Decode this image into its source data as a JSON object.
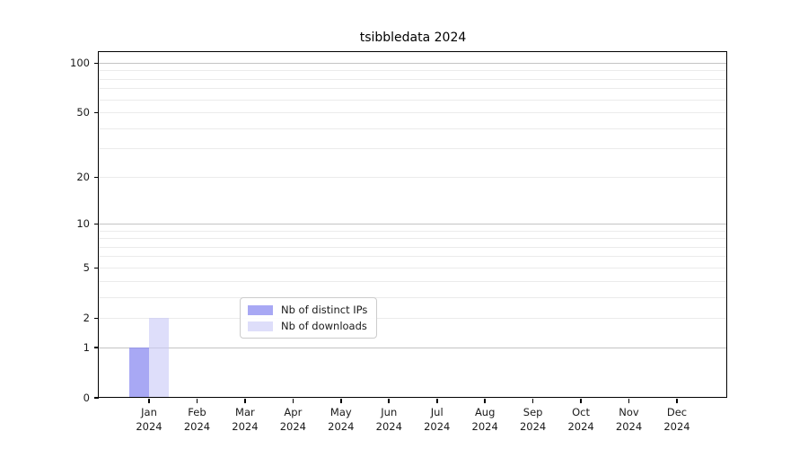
{
  "chart_data": {
    "type": "bar",
    "title": "tsibbledata 2024",
    "categories": [
      "Jan\n2024",
      "Feb\n2024",
      "Mar\n2024",
      "Apr\n2024",
      "May\n2024",
      "Jun\n2024",
      "Jul\n2024",
      "Aug\n2024",
      "Sep\n2024",
      "Oct\n2024",
      "Nov\n2024",
      "Dec\n2024"
    ],
    "series": [
      {
        "name": "Nb of distinct IPs",
        "color": "rgba(134,134,240,0.72)",
        "values": [
          1,
          0,
          0,
          0,
          0,
          0,
          0,
          0,
          0,
          0,
          0,
          0
        ]
      },
      {
        "name": "Nb of downloads",
        "color": "rgba(201,201,247,0.62)",
        "values": [
          2,
          0,
          0,
          0,
          0,
          0,
          0,
          0,
          0,
          0,
          0,
          0
        ]
      }
    ],
    "yscale": "log1p",
    "ylim": [
      0,
      117
    ],
    "yticks": [
      0,
      1,
      2,
      5,
      10,
      20,
      50,
      100
    ],
    "decade_gridlines": [
      1,
      10,
      100
    ],
    "minor_gridlines": [
      2,
      3,
      4,
      5,
      6,
      7,
      8,
      9,
      20,
      30,
      40,
      50,
      60,
      70,
      80,
      90
    ],
    "grid": true,
    "xlabel": "",
    "ylabel": "",
    "legend_position": "bottom-center",
    "legend_entries": [
      "Nb of distinct IPs",
      "Nb of downloads"
    ]
  }
}
